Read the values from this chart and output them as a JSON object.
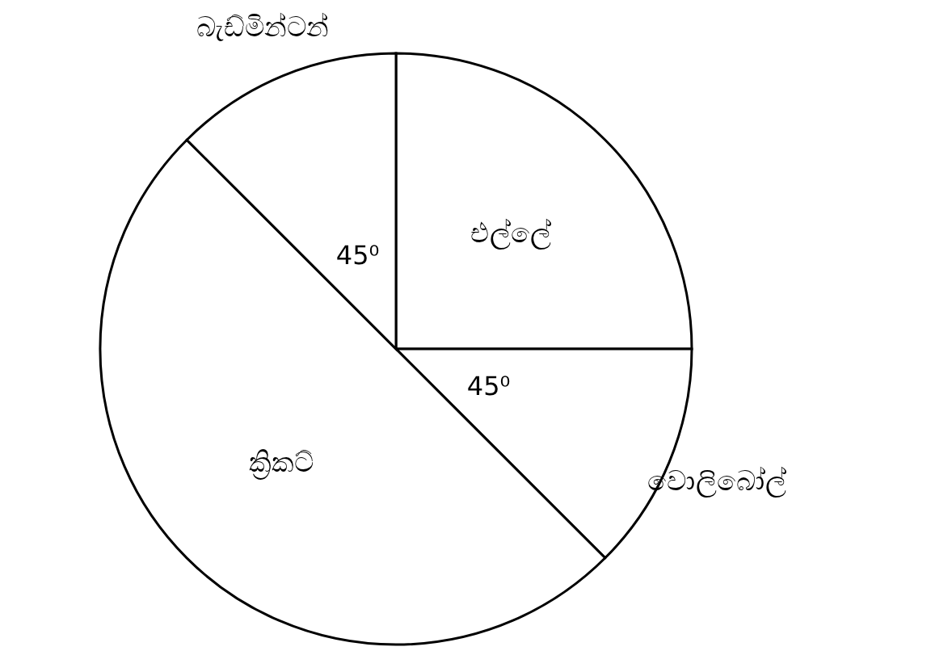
{
  "chart_data": {
    "type": "pie",
    "categories": [
      "එල්ලේ",
      "වොලිබෝල්",
      "ක්‍රිකට්",
      "බැඩ්මින්ටන්"
    ],
    "values": [
      90,
      45,
      180,
      45
    ],
    "colors": [
      "#ffffff",
      "#ffffff",
      "#ffffff",
      "#ffffff"
    ],
    "value_labels": [
      null,
      "45⁰",
      null,
      "45⁰"
    ]
  }
}
